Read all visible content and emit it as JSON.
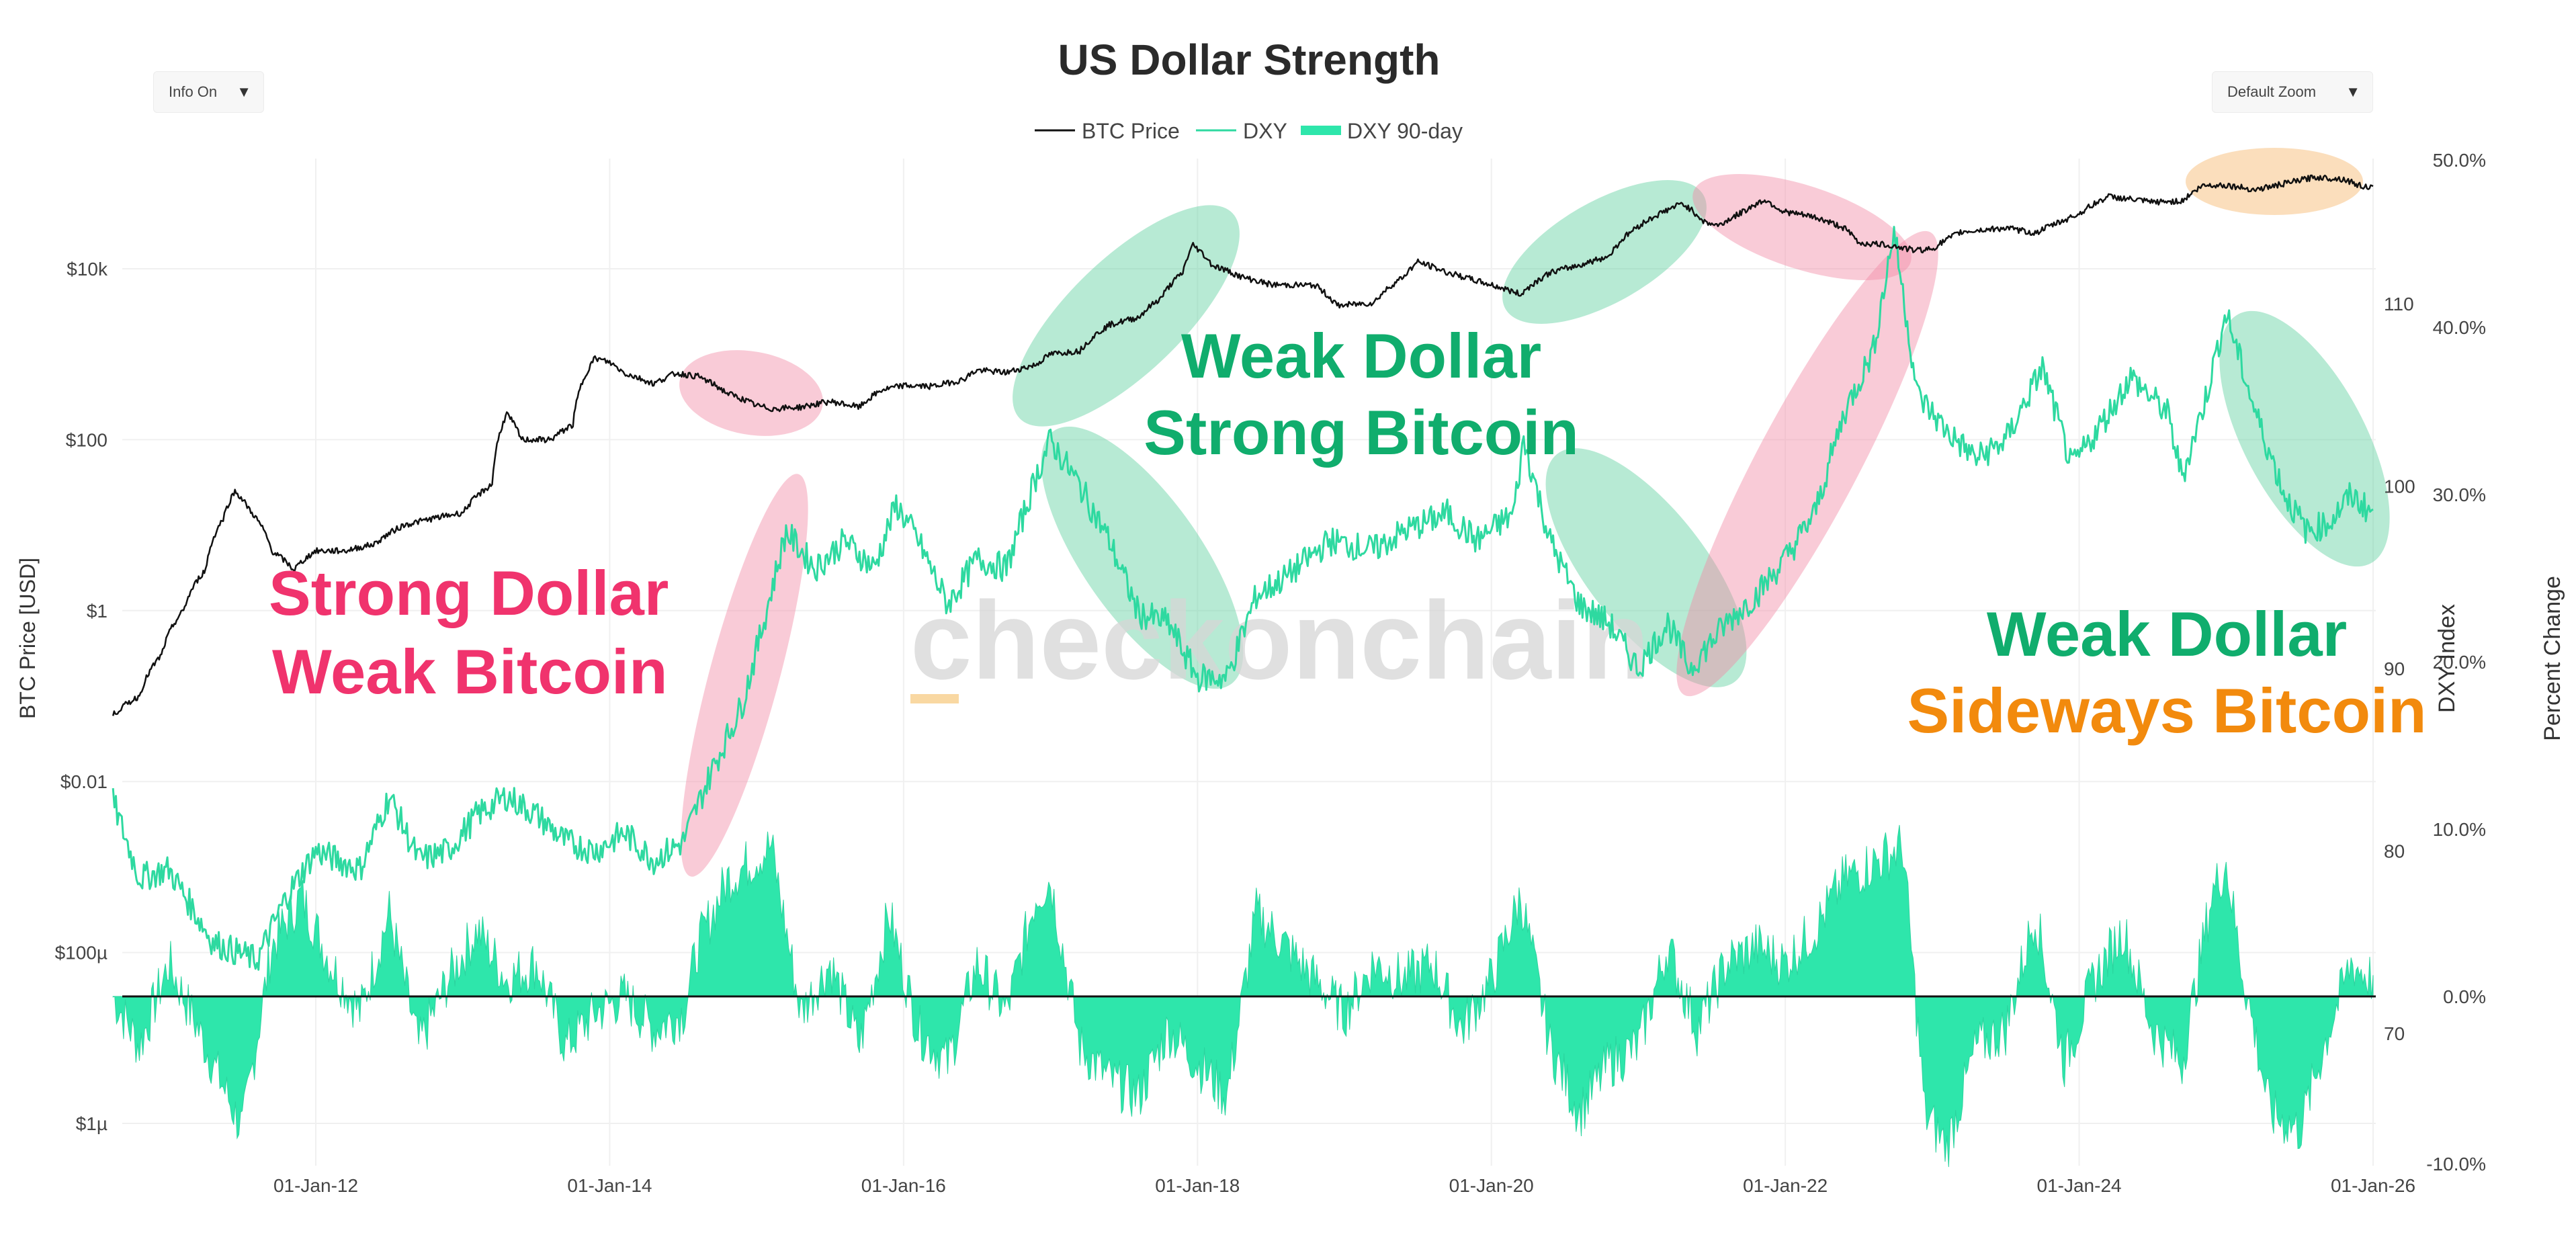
{
  "controls": {
    "info_toggle": "Info On",
    "zoom_select": "Default Zoom",
    "caret": "▼"
  },
  "watermark": {
    "text": "checkonchain",
    "prefix": "_"
  },
  "annotations": [
    {
      "id": "strong-dollar",
      "lines": [
        "Strong Dollar",
        "Weak Bitcoin"
      ],
      "colors": [
        "#f0336d",
        "#f0336d"
      ]
    },
    {
      "id": "weak-dollar-strong-btc",
      "lines": [
        "Weak Dollar",
        "Strong Bitcoin"
      ],
      "colors": [
        "#10ad6d",
        "#10ad6d"
      ]
    },
    {
      "id": "weak-dollar-sideways",
      "lines": [
        "Weak Dollar",
        "Sideways Bitcoin"
      ],
      "colors": [
        "#10ad6d",
        "#f28a0d"
      ]
    }
  ],
  "chart_data": {
    "type": "line",
    "title": "US Dollar Strength",
    "legend": [
      {
        "name": "BTC Price",
        "color": "#111111",
        "style": "line"
      },
      {
        "name": "DXY",
        "color": "#2ed9a0",
        "style": "line"
      },
      {
        "name": "DXY 90-day",
        "color": "#2ee6ab",
        "style": "area"
      }
    ],
    "x_axis": {
      "ticks": [
        "01-Jan-12",
        "01-Jan-14",
        "01-Jan-16",
        "01-Jan-18",
        "01-Jan-20",
        "01-Jan-22",
        "01-Jan-24",
        "01-Jan-26"
      ],
      "tick_years": [
        2012,
        2014,
        2016,
        2018,
        2020,
        2022,
        2024,
        2026
      ],
      "range": [
        2010.62,
        2026.0
      ]
    },
    "y_axis_left": {
      "label": "BTC Price [USD]",
      "scale": "log",
      "ticks": [
        "$10k",
        "$100",
        "$1",
        "$0.01",
        "$100µ",
        "$1µ"
      ],
      "tick_log10": [
        4,
        2,
        0,
        -2,
        -4,
        -6
      ],
      "range_log10": [
        -6.5,
        5.3
      ]
    },
    "y_axis_right_dxy": {
      "label": "DXY Index",
      "ticks": [
        "110",
        "100",
        "90",
        "80",
        "70"
      ],
      "tick_values": [
        110,
        100,
        90,
        80,
        70
      ],
      "range": [
        64.5,
        117.5
      ]
    },
    "y_axis_right_pct": {
      "label": "Percent Change",
      "ticks": [
        "50.0%",
        "40.0%",
        "30.0%",
        "20.0%",
        "10.0%",
        "0.0%",
        "-10.0%"
      ],
      "tick_values": [
        50,
        40,
        30,
        20,
        10,
        0,
        -10
      ],
      "range": [
        -10,
        50
      ]
    },
    "series": [
      {
        "name": "BTC Price",
        "points": [
          [
            2010.62,
            0.06
          ],
          [
            2010.8,
            0.1
          ],
          [
            2010.95,
            0.3
          ],
          [
            2011.1,
            1
          ],
          [
            2011.25,
            3
          ],
          [
            2011.37,
            12
          ],
          [
            2011.45,
            25
          ],
          [
            2011.55,
            15
          ],
          [
            2011.7,
            5
          ],
          [
            2011.85,
            3
          ],
          [
            2012.0,
            5
          ],
          [
            2012.2,
            5
          ],
          [
            2012.4,
            6
          ],
          [
            2012.6,
            10
          ],
          [
            2012.8,
            12
          ],
          [
            2013.0,
            14
          ],
          [
            2013.2,
            30
          ],
          [
            2013.3,
            200
          ],
          [
            2013.4,
            100
          ],
          [
            2013.6,
            100
          ],
          [
            2013.75,
            150
          ],
          [
            2013.9,
            900
          ],
          [
            2014.0,
            800
          ],
          [
            2014.1,
            600
          ],
          [
            2014.3,
            450
          ],
          [
            2014.45,
            600
          ],
          [
            2014.6,
            550
          ],
          [
            2014.8,
            350
          ],
          [
            2015.0,
            250
          ],
          [
            2015.1,
            230
          ],
          [
            2015.3,
            240
          ],
          [
            2015.5,
            280
          ],
          [
            2015.7,
            240
          ],
          [
            2015.85,
            380
          ],
          [
            2016.0,
            430
          ],
          [
            2016.2,
            420
          ],
          [
            2016.4,
            500
          ],
          [
            2016.5,
            650
          ],
          [
            2016.7,
            610
          ],
          [
            2016.9,
            750
          ],
          [
            2017.0,
            1000
          ],
          [
            2017.2,
            1100
          ],
          [
            2017.4,
            2200
          ],
          [
            2017.6,
            2700
          ],
          [
            2017.75,
            4500
          ],
          [
            2017.9,
            9000
          ],
          [
            2017.97,
            19000
          ],
          [
            2018.1,
            11000
          ],
          [
            2018.3,
            8000
          ],
          [
            2018.5,
            6500
          ],
          [
            2018.8,
            6400
          ],
          [
            2018.95,
            3700
          ],
          [
            2019.2,
            4000
          ],
          [
            2019.4,
            8000
          ],
          [
            2019.5,
            12000
          ],
          [
            2019.7,
            9000
          ],
          [
            2019.9,
            7200
          ],
          [
            2020.2,
            5000
          ],
          [
            2020.4,
            9000
          ],
          [
            2020.6,
            11000
          ],
          [
            2020.8,
            14000
          ],
          [
            2020.97,
            29000
          ],
          [
            2021.1,
            40000
          ],
          [
            2021.3,
            58000
          ],
          [
            2021.45,
            35000
          ],
          [
            2021.55,
            32000
          ],
          [
            2021.7,
            45000
          ],
          [
            2021.86,
            64000
          ],
          [
            2021.98,
            47000
          ],
          [
            2022.2,
            40000
          ],
          [
            2022.4,
            30000
          ],
          [
            2022.5,
            20000
          ],
          [
            2022.7,
            19000
          ],
          [
            2022.87,
            16500
          ],
          [
            2023.0,
            17000
          ],
          [
            2023.2,
            27000
          ],
          [
            2023.5,
            30000
          ],
          [
            2023.7,
            26000
          ],
          [
            2023.9,
            37000
          ],
          [
            2024.0,
            44000
          ],
          [
            2024.2,
            70000
          ],
          [
            2024.5,
            60000
          ],
          [
            2024.7,
            62000
          ],
          [
            2024.85,
            95000
          ],
          [
            2025.0,
            95000
          ],
          [
            2025.2,
            84000
          ],
          [
            2025.35,
            95000
          ],
          [
            2025.5,
            108000
          ],
          [
            2025.6,
            118000
          ],
          [
            2025.8,
            112000
          ],
          [
            2025.9,
            95000
          ],
          [
            2026.0,
            88000
          ]
        ]
      },
      {
        "name": "DXY",
        "points": [
          [
            2010.62,
            82.7
          ],
          [
            2010.8,
            78.5
          ],
          [
            2011.0,
            79
          ],
          [
            2011.3,
            75
          ],
          [
            2011.6,
            74
          ],
          [
            2011.8,
            77.5
          ],
          [
            2012.0,
            80
          ],
          [
            2012.3,
            79
          ],
          [
            2012.5,
            83
          ],
          [
            2012.7,
            79.5
          ],
          [
            2012.9,
            80
          ],
          [
            2013.1,
            82
          ],
          [
            2013.3,
            83
          ],
          [
            2013.5,
            82
          ],
          [
            2013.7,
            80.5
          ],
          [
            2013.9,
            80
          ],
          [
            2014.1,
            81
          ],
          [
            2014.3,
            79.5
          ],
          [
            2014.5,
            80.5
          ],
          [
            2014.7,
            84.5
          ],
          [
            2014.9,
            88
          ],
          [
            2015.0,
            91
          ],
          [
            2015.2,
            97.5
          ],
          [
            2015.4,
            95.5
          ],
          [
            2015.6,
            97
          ],
          [
            2015.8,
            95.5
          ],
          [
            2015.95,
            99
          ],
          [
            2016.1,
            97
          ],
          [
            2016.3,
            93.5
          ],
          [
            2016.5,
            96
          ],
          [
            2016.7,
            95.5
          ],
          [
            2016.9,
            100.5
          ],
          [
            2017.0,
            102.5
          ],
          [
            2017.2,
            100
          ],
          [
            2017.4,
            97
          ],
          [
            2017.6,
            93
          ],
          [
            2017.8,
            92.5
          ],
          [
            2018.0,
            89.5
          ],
          [
            2018.2,
            89.5
          ],
          [
            2018.4,
            94
          ],
          [
            2018.6,
            95
          ],
          [
            2018.9,
            97
          ],
          [
            2019.2,
            96.5
          ],
          [
            2019.4,
            97.5
          ],
          [
            2019.7,
            98.5
          ],
          [
            2019.9,
            97
          ],
          [
            2020.15,
            98.5
          ],
          [
            2020.22,
            102.5
          ],
          [
            2020.4,
            97
          ],
          [
            2020.6,
            93.5
          ],
          [
            2020.8,
            92.5
          ],
          [
            2021.0,
            90
          ],
          [
            2021.2,
            92.5
          ],
          [
            2021.35,
            90
          ],
          [
            2021.6,
            92.5
          ],
          [
            2021.8,
            94
          ],
          [
            2022.0,
            96
          ],
          [
            2022.2,
            98.5
          ],
          [
            2022.4,
            104
          ],
          [
            2022.6,
            107.5
          ],
          [
            2022.74,
            114
          ],
          [
            2022.9,
            105
          ],
          [
            2023.1,
            103
          ],
          [
            2023.3,
            101.5
          ],
          [
            2023.5,
            102.5
          ],
          [
            2023.75,
            106.5
          ],
          [
            2023.95,
            101
          ],
          [
            2024.2,
            104
          ],
          [
            2024.35,
            106
          ],
          [
            2024.6,
            104
          ],
          [
            2024.7,
            100.5
          ],
          [
            2024.85,
            104.5
          ],
          [
            2025.0,
            109.5
          ],
          [
            2025.2,
            104
          ],
          [
            2025.4,
            99.5
          ],
          [
            2025.55,
            97.5
          ],
          [
            2025.7,
            98
          ],
          [
            2025.85,
            99.5
          ],
          [
            2026.0,
            98.5
          ]
        ]
      },
      {
        "name": "DXY 90-day",
        "points": [
          [
            2010.62,
            0
          ],
          [
            2010.8,
            -3
          ],
          [
            2011.0,
            2
          ],
          [
            2011.3,
            -4
          ],
          [
            2011.5,
            -8
          ],
          [
            2011.7,
            3
          ],
          [
            2011.9,
            6
          ],
          [
            2012.1,
            2
          ],
          [
            2012.3,
            -1
          ],
          [
            2012.5,
            5
          ],
          [
            2012.7,
            -3
          ],
          [
            2012.9,
            1
          ],
          [
            2013.1,
            4
          ],
          [
            2013.3,
            1
          ],
          [
            2013.5,
            2
          ],
          [
            2013.7,
            -3
          ],
          [
            2013.9,
            -1
          ],
          [
            2014.1,
            0
          ],
          [
            2014.3,
            -2
          ],
          [
            2014.5,
            -1
          ],
          [
            2014.6,
            3
          ],
          [
            2014.8,
            7
          ],
          [
            2014.95,
            8
          ],
          [
            2015.1,
            9
          ],
          [
            2015.3,
            -1
          ],
          [
            2015.5,
            2
          ],
          [
            2015.7,
            -3
          ],
          [
            2015.9,
            5
          ],
          [
            2016.1,
            -2
          ],
          [
            2016.3,
            -4
          ],
          [
            2016.5,
            2
          ],
          [
            2016.7,
            -1
          ],
          [
            2016.9,
            6
          ],
          [
            2017.0,
            7
          ],
          [
            2017.2,
            -3
          ],
          [
            2017.4,
            -5
          ],
          [
            2017.6,
            -6
          ],
          [
            2017.8,
            -2
          ],
          [
            2018.0,
            -4
          ],
          [
            2018.2,
            -6
          ],
          [
            2018.4,
            5
          ],
          [
            2018.6,
            3
          ],
          [
            2018.8,
            1
          ],
          [
            2019.0,
            -1
          ],
          [
            2019.2,
            2
          ],
          [
            2019.4,
            1
          ],
          [
            2019.6,
            2
          ],
          [
            2019.8,
            -2
          ],
          [
            2020.0,
            1
          ],
          [
            2020.2,
            6
          ],
          [
            2020.4,
            -3
          ],
          [
            2020.6,
            -7
          ],
          [
            2020.8,
            -4
          ],
          [
            2021.0,
            -3
          ],
          [
            2021.2,
            3
          ],
          [
            2021.4,
            -2
          ],
          [
            2021.6,
            2
          ],
          [
            2021.8,
            3
          ],
          [
            2022.0,
            2
          ],
          [
            2022.2,
            4
          ],
          [
            2022.4,
            7
          ],
          [
            2022.6,
            8
          ],
          [
            2022.8,
            9
          ],
          [
            2022.95,
            -7
          ],
          [
            2023.1,
            -9
          ],
          [
            2023.3,
            -3
          ],
          [
            2023.5,
            -2
          ],
          [
            2023.7,
            5
          ],
          [
            2023.9,
            -4
          ],
          [
            2024.1,
            1
          ],
          [
            2024.3,
            4
          ],
          [
            2024.5,
            -2
          ],
          [
            2024.7,
            -4
          ],
          [
            2024.9,
            6
          ],
          [
            2025.0,
            8
          ],
          [
            2025.1,
            2
          ],
          [
            2025.3,
            -7
          ],
          [
            2025.5,
            -8
          ],
          [
            2025.7,
            -2
          ],
          [
            2025.85,
            2
          ],
          [
            2026.0,
            1
          ]
        ]
      }
    ],
    "highlights": [
      {
        "color": "red",
        "x_center": 2015.0,
        "log10_center": 2.7
      },
      {
        "color": "red",
        "x_center": 2015.3,
        "dxy_center": 88.5
      },
      {
        "color": "green",
        "x_center": 2017.55,
        "log10_center": 3.7
      },
      {
        "color": "green",
        "x_center": 2017.55,
        "dxy_center": 96
      },
      {
        "color": "green",
        "x_center": 2020.75,
        "log10_center": 4.2
      },
      {
        "color": "green",
        "x_center": 2021.25,
        "dxy_center": 95.5
      },
      {
        "color": "red",
        "x_center": 2022.0,
        "log10_center": 4.5
      },
      {
        "color": "red",
        "x_center": 2022.2,
        "dxy_center": 101
      },
      {
        "color": "green",
        "x_center": 2025.6,
        "dxy_center": 102
      },
      {
        "color": "orange",
        "x_center": 2025.45,
        "log10_center": 5.0
      }
    ]
  },
  "colors": {
    "grid": "#f0f0f0",
    "zero_line": "#111111",
    "axis_text": "#444444",
    "red_highlight": "#f28ca6",
    "green_highlight": "#5fd0a0",
    "orange_highlight": "#f6b56a",
    "watermark": "#d6d6d6",
    "watermark_prefix": "#f6c77a"
  }
}
